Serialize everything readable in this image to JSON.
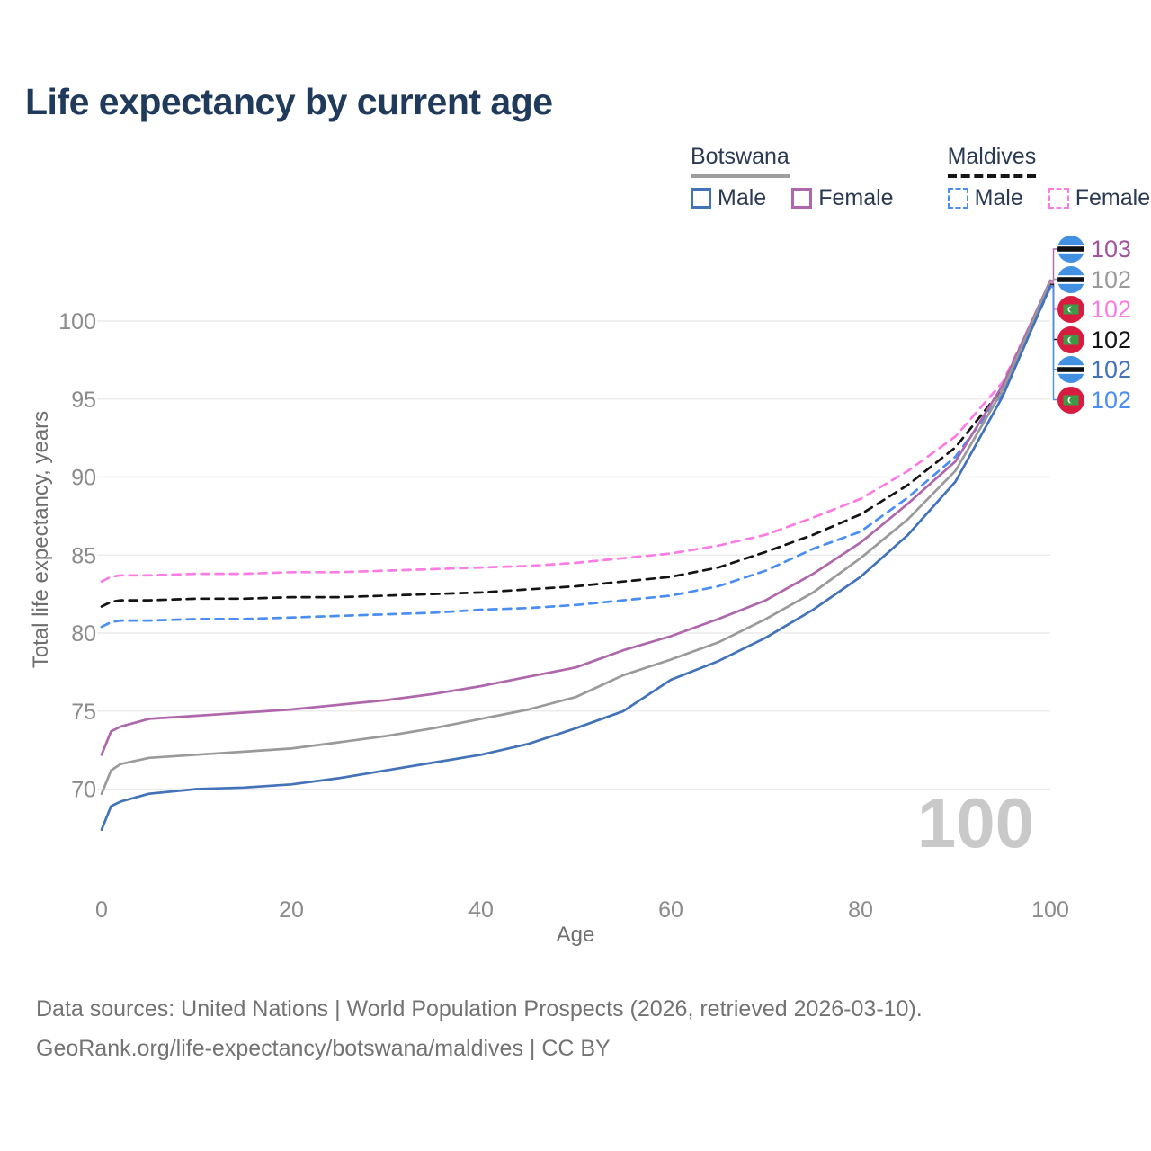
{
  "page": {
    "title": "Life expectancy by current age"
  },
  "legend": {
    "groups": [
      {
        "name": "Botswana",
        "style": "solid",
        "items": [
          {
            "label": "Male",
            "series": "bw_male"
          },
          {
            "label": "Female",
            "series": "bw_female"
          }
        ]
      },
      {
        "name": "Maldives",
        "style": "dashed",
        "items": [
          {
            "label": "Male",
            "series": "mv_male"
          },
          {
            "label": "Female",
            "series": "mv_female"
          }
        ]
      }
    ]
  },
  "watermark": "100",
  "footer": {
    "line1": "Data sources: United Nations | World Population Prospects (2026, retrieved 2026-03-10).",
    "line2": "GeoRank.org/life-expectancy/botswana/maldives | CC BY"
  },
  "colors": {
    "title_text": "#1f3a5a",
    "axis_text": "#8b8b8b",
    "axis_title_text": "#6e6e6e",
    "gridline": "#ececec",
    "watermark": "#c9c9c9",
    "botswana_rule": "#9e9e9e",
    "maldives_rule": "#161616",
    "botswana_flag_blue": "#4190e2",
    "maldives_flag_red": "#d81c3f",
    "maldives_flag_green": "#3f9a47"
  },
  "chart_data": {
    "type": "line",
    "title": "Life expectancy by current age",
    "xlabel": "Age",
    "ylabel": "Total life expectancy, years",
    "xlim": [
      0,
      100
    ],
    "ylim": [
      66.5,
      103.5
    ],
    "x_ticks": [
      0,
      20,
      40,
      60,
      80,
      100
    ],
    "y_ticks": [
      70,
      75,
      80,
      85,
      90,
      95,
      100
    ],
    "grid": "horizontal",
    "legend_position": "top-right",
    "x": [
      0,
      1,
      2,
      5,
      10,
      15,
      20,
      25,
      30,
      35,
      40,
      45,
      50,
      55,
      60,
      65,
      70,
      75,
      80,
      85,
      90,
      95,
      100
    ],
    "series": [
      {
        "key": "mv_female",
        "name": "Female",
        "country": "Maldives",
        "dash": true,
        "color": "#fb7ce3",
        "values": [
          83.3,
          83.6,
          83.7,
          83.7,
          83.8,
          83.8,
          83.9,
          83.9,
          84.0,
          84.1,
          84.2,
          84.3,
          84.5,
          84.8,
          85.1,
          85.6,
          86.3,
          87.4,
          88.6,
          90.4,
          92.6,
          96.1,
          102.45
        ]
      },
      {
        "key": "mv_both",
        "name": "Both sexes",
        "country": "Maldives",
        "dash": true,
        "color": "#141414",
        "values": [
          81.7,
          82.0,
          82.1,
          82.1,
          82.2,
          82.2,
          82.3,
          82.3,
          82.4,
          82.5,
          82.6,
          82.8,
          83.0,
          83.3,
          83.6,
          84.2,
          85.2,
          86.3,
          87.6,
          89.5,
          91.9,
          95.7,
          102.35
        ]
      },
      {
        "key": "mv_male",
        "name": "Male",
        "country": "Maldives",
        "dash": true,
        "color": "#4b8ef2",
        "values": [
          80.4,
          80.7,
          80.8,
          80.8,
          80.9,
          80.9,
          81.0,
          81.1,
          81.2,
          81.3,
          81.5,
          81.6,
          81.8,
          82.1,
          82.4,
          83.0,
          84.0,
          85.4,
          86.5,
          88.7,
          91.3,
          95.4,
          102.15
        ]
      },
      {
        "key": "bw_female",
        "name": "Female",
        "country": "Botswana",
        "dash": false,
        "color": "#ae67ab",
        "values": [
          72.2,
          73.7,
          74.0,
          74.5,
          74.7,
          74.9,
          75.1,
          75.4,
          75.7,
          76.1,
          76.6,
          77.2,
          77.8,
          78.9,
          79.8,
          80.9,
          82.1,
          83.8,
          85.8,
          88.3,
          91.0,
          95.9,
          102.6
        ]
      },
      {
        "key": "bw_both",
        "name": "Both sexes",
        "country": "Botswana",
        "dash": false,
        "color": "#9a9a9a",
        "values": [
          69.7,
          71.2,
          71.6,
          72.0,
          72.2,
          72.4,
          72.6,
          73.0,
          73.4,
          73.9,
          74.5,
          75.1,
          75.9,
          77.3,
          78.3,
          79.4,
          80.9,
          82.6,
          84.8,
          87.3,
          90.4,
          95.6,
          102.5
        ]
      },
      {
        "key": "bw_male",
        "name": "Male",
        "country": "Botswana",
        "dash": false,
        "color": "#4273b9",
        "values": [
          67.4,
          68.9,
          69.2,
          69.7,
          70.0,
          70.1,
          70.3,
          70.7,
          71.2,
          71.7,
          72.2,
          72.9,
          73.9,
          75.0,
          77.0,
          78.2,
          79.7,
          81.5,
          83.6,
          86.3,
          89.7,
          95.2,
          102.25
        ]
      }
    ],
    "endpoints": [
      {
        "series": "bw_female",
        "flag": "botswana",
        "value": "103",
        "color": "#a0549e"
      },
      {
        "series": "bw_both",
        "flag": "botswana",
        "value": "102",
        "color": "#9a9a9a"
      },
      {
        "series": "mv_female",
        "flag": "maldives",
        "value": "102",
        "color": "#fb7ce3"
      },
      {
        "series": "mv_both",
        "flag": "maldives",
        "value": "102",
        "color": "#141414"
      },
      {
        "series": "bw_male",
        "flag": "botswana",
        "value": "102",
        "color": "#4273b9"
      },
      {
        "series": "mv_male",
        "flag": "maldives",
        "value": "102",
        "color": "#4b8ef2"
      }
    ]
  }
}
